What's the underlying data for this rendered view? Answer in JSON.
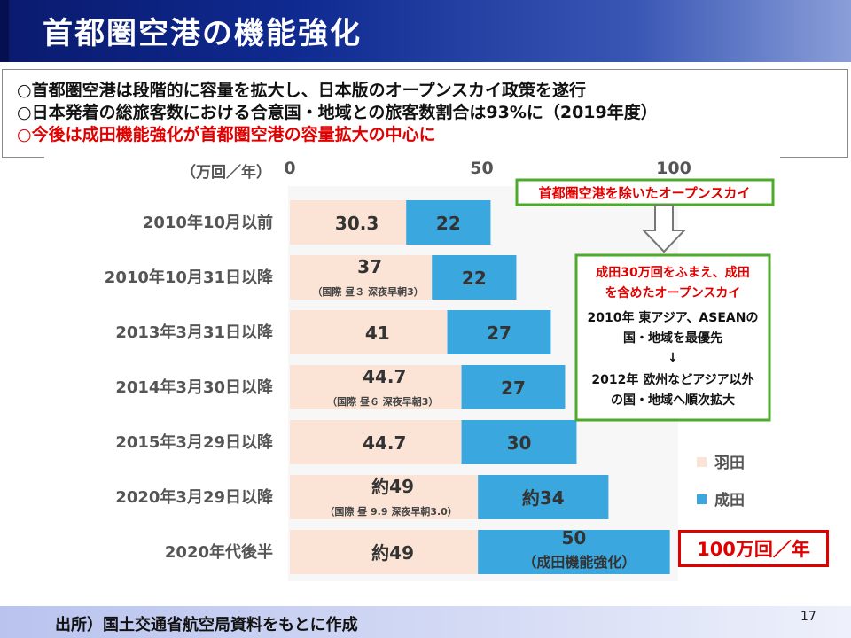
{
  "title": "首都圏空港の機能強化",
  "bullets": [
    "○首都圏空港は段階的に容量を拡大し、日本版のオープンスカイ政策を遂行",
    "○日本発着の総旅客数における合意国・地域との旅客数割合は93%に（2019年度）",
    "○今後は成田機能強化が首都圏空港の容量拡大の中心に"
  ],
  "footer": "出所）国土交通省航空局資料をもとに作成",
  "page_number": "17",
  "total_box": "100万回／年",
  "colors": {
    "haneda": "#fbe4d6",
    "narita": "#3aa7de",
    "accent_red": "#e00000",
    "green_border": "#4daa2a"
  },
  "chart_data": {
    "type": "bar",
    "orientation": "horizontal",
    "stacked": true,
    "unit_label": "（万回／年）",
    "xlim": [
      0,
      100
    ],
    "x_ticks": [
      "0",
      "50",
      "100"
    ],
    "categories": [
      "2010年10月以前",
      "2010年10月31日以降",
      "2013年3月31日以降",
      "2014年3月30日以降",
      "2015年3月29日以降",
      "2020年3月29日以降",
      "2020年代後半"
    ],
    "series": [
      {
        "name": "羽田",
        "values": [
          30.3,
          37,
          41,
          44.7,
          44.7,
          49,
          49
        ]
      },
      {
        "name": "成田",
        "values": [
          22,
          22,
          27,
          27,
          30,
          34,
          50
        ]
      }
    ],
    "haneda_labels": [
      "30.3",
      "37",
      "41",
      "44.7",
      "44.7",
      "約49",
      "約49"
    ],
    "haneda_notes": [
      "",
      "（国際 昼３ 深夜早朝3）",
      "",
      "（国際 昼６ 深夜早朝3）",
      "",
      "（国際 昼 9.9 深夜早朝3.0）",
      ""
    ],
    "narita_labels": [
      "22",
      "22",
      "27",
      "27",
      "30",
      "約34",
      "50"
    ],
    "narita_notes": [
      "",
      "",
      "",
      "",
      "",
      "",
      "（成田機能強化）"
    ],
    "legend": [
      "羽田",
      "成田"
    ],
    "legend_position": "right",
    "annotation_top": "首都圏空港を除いたオープンスカイ",
    "annotation_box": [
      "成田30万回をふまえ、成田",
      "を含めたオープンスカイ",
      "2010年 東アジア、ASEANの",
      "国・地域を最優先",
      "↓",
      "2012年 欧州などアジア以外",
      "の国・地域へ順次拡大"
    ]
  }
}
